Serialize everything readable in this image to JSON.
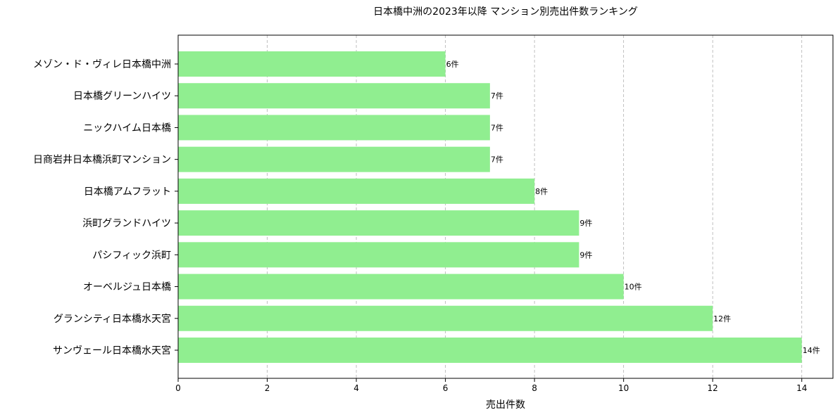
{
  "chart_data": {
    "type": "bar",
    "orientation": "horizontal",
    "title": "日本橋中洲の2023年以降 マンション別売出件数ランキング",
    "xlabel": "売出件数",
    "ylabel": "",
    "xlim": [
      0,
      14.7
    ],
    "xticks": [
      0,
      2,
      4,
      6,
      8,
      10,
      12,
      14
    ],
    "grid": "x-dashed",
    "bar_color": "#90ee90",
    "value_suffix": "件",
    "categories": [
      "メゾン・ド・ヴィレ日本橋中洲",
      "日本橋グリーンハイツ",
      "ニックハイム日本橋",
      "日商岩井日本橋浜町マンション",
      "日本橋アムフラット",
      "浜町グランドハイツ",
      "パシフィック浜町",
      "オーベルジュ日本橋",
      "グランシティ日本橋水天宮",
      "サンヴェール日本橋水天宮"
    ],
    "values": [
      6,
      7,
      7,
      7,
      8,
      9,
      9,
      10,
      12,
      14
    ],
    "data_labels": [
      "6件",
      "7件",
      "7件",
      "7件",
      "8件",
      "9件",
      "9件",
      "10件",
      "12件",
      "14件"
    ]
  }
}
